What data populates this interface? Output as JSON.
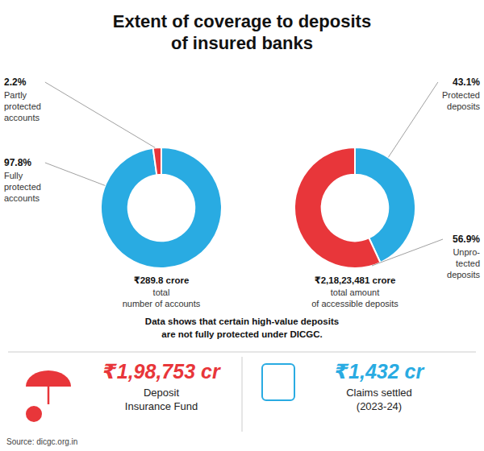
{
  "title": "Extent of coverage to deposits\nof insured banks",
  "chart_data": [
    {
      "type": "donut",
      "categories": [
        "Fully\nprotected\naccounts",
        "Partly\nprotected\naccounts"
      ],
      "values": [
        97.8,
        2.2
      ],
      "value_labels": [
        "97.8%",
        "2.2%"
      ],
      "data_labels": true,
      "colors": [
        "#29abe2",
        "#e8363a"
      ],
      "annotations": [
        "₹289.8 crore",
        "total\nnumber of accounts"
      ]
    },
    {
      "type": "donut",
      "categories": [
        "Protected\ndeposits",
        "Unpro-\ntected\ndeposits"
      ],
      "values": [
        43.1,
        56.9
      ],
      "value_labels": [
        "43.1%",
        "56.9%"
      ],
      "data_labels": true,
      "colors": [
        "#29abe2",
        "#e8363a"
      ],
      "annotations": [
        "₹2,18,23,481 crore",
        "total amount\nof accessible deposits"
      ]
    }
  ],
  "annotations": [
    {
      "text": "Data shows that certain high-value deposits\nare not fully protected under DICGC."
    },
    {
      "text": "₹1,98,753 cr",
      "color": "#e8363a"
    },
    {
      "text": "Deposit\nInsurance Fund"
    },
    {
      "text": "₹1,432 cr",
      "color": "#29abe2"
    },
    {
      "text": "Claims settled\n(2023-24)"
    },
    {
      "text": "Source: dicgc.org.in"
    }
  ]
}
